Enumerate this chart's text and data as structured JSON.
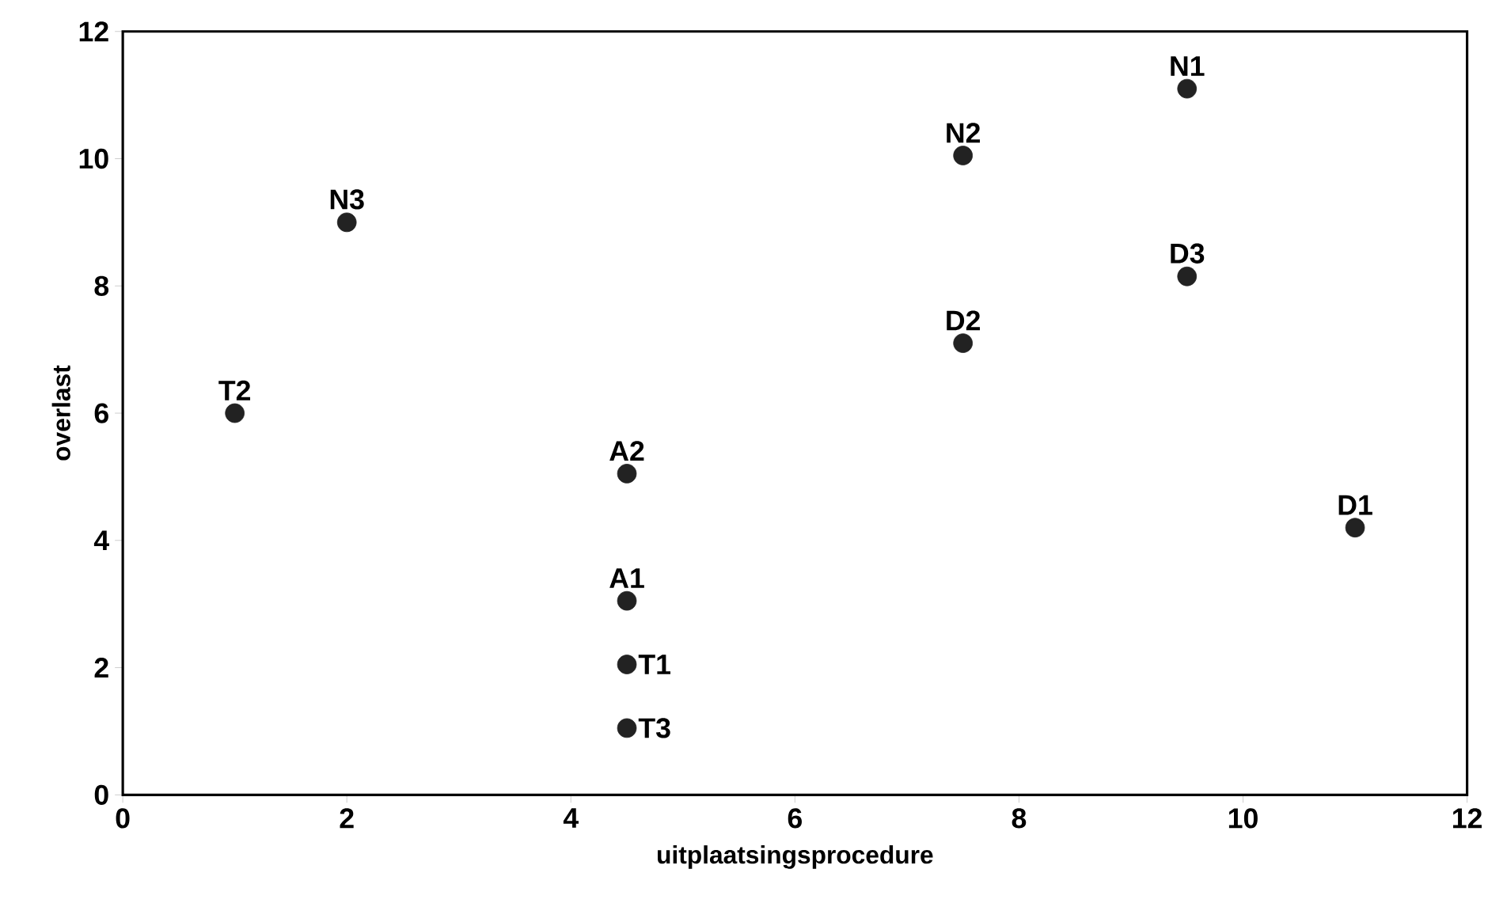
{
  "chart_data": {
    "type": "scatter",
    "xlabel": "uitplaatsingsprocedure",
    "ylabel": "overlast",
    "x": [
      1,
      2,
      4.5,
      4.5,
      4.5,
      4.5,
      7.5,
      7.5,
      9.5,
      9.5,
      11
    ],
    "series": [
      {
        "color": "#222222",
        "values": [
          6,
          9,
          5.05,
          3.05,
          2.05,
          1.05,
          7.1,
          10.05,
          11.1,
          8.15,
          4.2
        ]
      }
    ],
    "marker": "circle",
    "grid": false,
    "xlim": [
      0,
      12
    ],
    "ylim": [
      0,
      12
    ],
    "xticks": [
      0,
      2,
      4,
      6,
      8,
      10,
      12
    ],
    "yticks": [
      0,
      2,
      4,
      6,
      8,
      10,
      12
    ],
    "annotations": [
      {
        "text": "T2",
        "x": 1,
        "y": 6
      },
      {
        "text": "N3",
        "x": 2,
        "y": 9
      },
      {
        "text": "A2",
        "x": 4.5,
        "y": 5.05
      },
      {
        "text": "A1",
        "x": 4.5,
        "y": 3.05
      },
      {
        "text": "T1",
        "x": 4.5,
        "y": 2.05
      },
      {
        "text": "T3",
        "x": 4.5,
        "y": 1.05
      },
      {
        "text": "D2",
        "x": 7.5,
        "y": 7.1
      },
      {
        "text": "N2",
        "x": 7.5,
        "y": 10.05
      },
      {
        "text": "N1",
        "x": 9.5,
        "y": 11.1
      },
      {
        "text": "D3",
        "x": 9.5,
        "y": 8.15
      },
      {
        "text": "D1",
        "x": 11,
        "y": 4.2
      }
    ]
  }
}
